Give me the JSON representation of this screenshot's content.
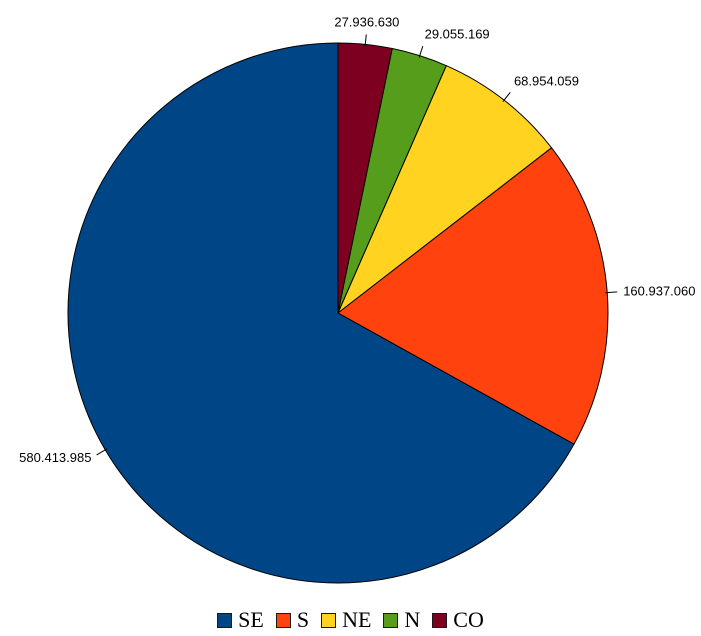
{
  "chart_data": {
    "type": "pie",
    "start_angle_deg": 0,
    "direction": "clockwise",
    "order_of_slices": [
      "CO",
      "N",
      "NE",
      "S",
      "SE"
    ],
    "slices": [
      {
        "label": "SE",
        "value": 580413985,
        "value_label": "580.413.985",
        "color": "#004586"
      },
      {
        "label": "S",
        "value": 160937060,
        "value_label": "160.937.060",
        "color": "#ff420e"
      },
      {
        "label": "NE",
        "value": 68954059,
        "value_label": "68.954.059",
        "color": "#ffd320"
      },
      {
        "label": "N",
        "value": 29055169,
        "value_label": "29.055.169",
        "color": "#579d1c"
      },
      {
        "label": "CO",
        "value": 27936630,
        "value_label": "27.936.630",
        "color": "#7e0021"
      }
    ],
    "legend": {
      "position": "bottom",
      "items": [
        "SE",
        "S",
        "NE",
        "N",
        "CO"
      ]
    }
  }
}
